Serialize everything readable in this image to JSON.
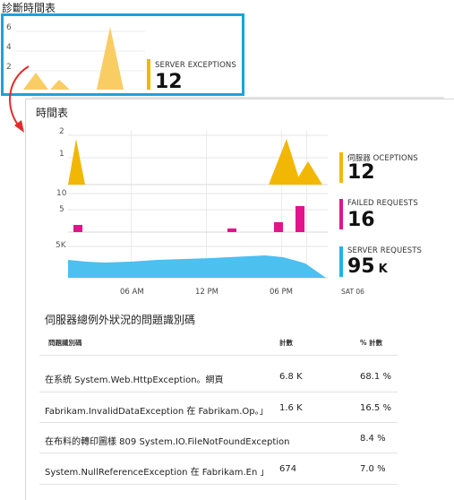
{
  "tile": {
    "title": "診斷時間表",
    "y_ticks": [
      "6",
      "4",
      "2"
    ],
    "metric": {
      "label": "SERVER EXCEPTIONS",
      "value": "12",
      "color": "#f2b705"
    }
  },
  "blade": {
    "title": "時間表",
    "charts": [
      {
        "y_ticks": [
          "2",
          "1"
        ],
        "label": "伺服器 OCEPTIONS",
        "value": "12",
        "unit": "",
        "color": "#f2b705"
      },
      {
        "y_ticks": [
          "10",
          "5"
        ],
        "label": "FAILED REQUESTS",
        "value": "16",
        "unit": "",
        "color": "#e3138c"
      },
      {
        "y_ticks": [
          "5K"
        ],
        "label": "SERVER REQUESTS",
        "value": "95",
        "unit": "K",
        "color": "#1cb4e9"
      }
    ],
    "x_labels": [
      "06 AM",
      "12 PM",
      "06 PM",
      "SAT 06"
    ]
  },
  "table": {
    "title": "伺服器總例外狀況的問題識別碼",
    "headers": {
      "problem": "問題識別碼",
      "count": "計數",
      "pct": "% 計數"
    },
    "rows": [
      {
        "problem": "在系統 System.Web.HttpException。網頁",
        "count": "6.8 K",
        "pct": "68.1 %"
      },
      {
        "problem": "Fabrikam.InvalidDataException 在 Fabrikam.Op。」",
        "count": "1.6 K",
        "pct": "16.5 %"
      },
      {
        "problem": "在布料的轉印圖樣 809 System.IO.FileNotFoundException",
        "count": "",
        "pct": "8.4 %"
      },
      {
        "problem": "System.NullReferenceException 在 Fabrikam.En 」",
        "count": "674",
        "pct": "7.0 %"
      }
    ]
  }
}
